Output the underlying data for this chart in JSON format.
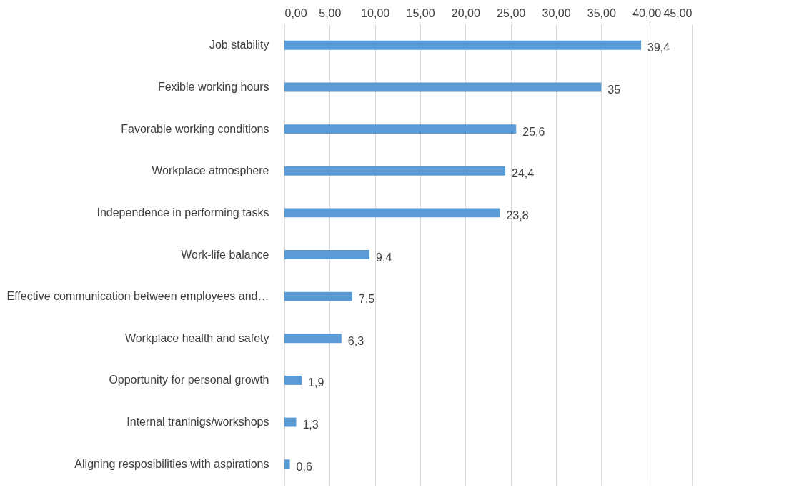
{
  "chart_data": {
    "type": "bar",
    "orientation": "horizontal",
    "categories": [
      "Job stability",
      "Fexible working hours",
      "Favorable working conditions",
      "Workplace atmosphere",
      "Independence in performing tasks",
      "Work-life balance",
      "Effective communication between employees and…",
      "Workplace health and safety",
      "Opportunity for personal growth",
      "Internal traninigs/workshops",
      "Aligning resposibilities with aspirations"
    ],
    "values": [
      39.4,
      35,
      25.6,
      24.4,
      23.8,
      9.4,
      7.5,
      6.3,
      1.9,
      1.3,
      0.6
    ],
    "value_labels": [
      "39,4",
      "35",
      "25,6",
      "24,4",
      "23,8",
      "9,4",
      "7,5",
      "6,3",
      "1,9",
      "1,3",
      "0,6"
    ],
    "color": "#5b9bd5",
    "xlim": [
      0,
      45
    ],
    "xticks": [
      {
        "value": 0,
        "label": "0,00"
      },
      {
        "value": 5,
        "label": "5,00"
      },
      {
        "value": 10,
        "label": "10,00"
      },
      {
        "value": 15,
        "label": "15,00"
      },
      {
        "value": 20,
        "label": "20,00"
      },
      {
        "value": 25,
        "label": "25,00"
      },
      {
        "value": 30,
        "label": "30,00"
      },
      {
        "value": 35,
        "label": "35,00"
      },
      {
        "value": 40,
        "label": "40,00"
      },
      {
        "value": 45,
        "label": "45,00"
      }
    ],
    "grid": "x"
  }
}
